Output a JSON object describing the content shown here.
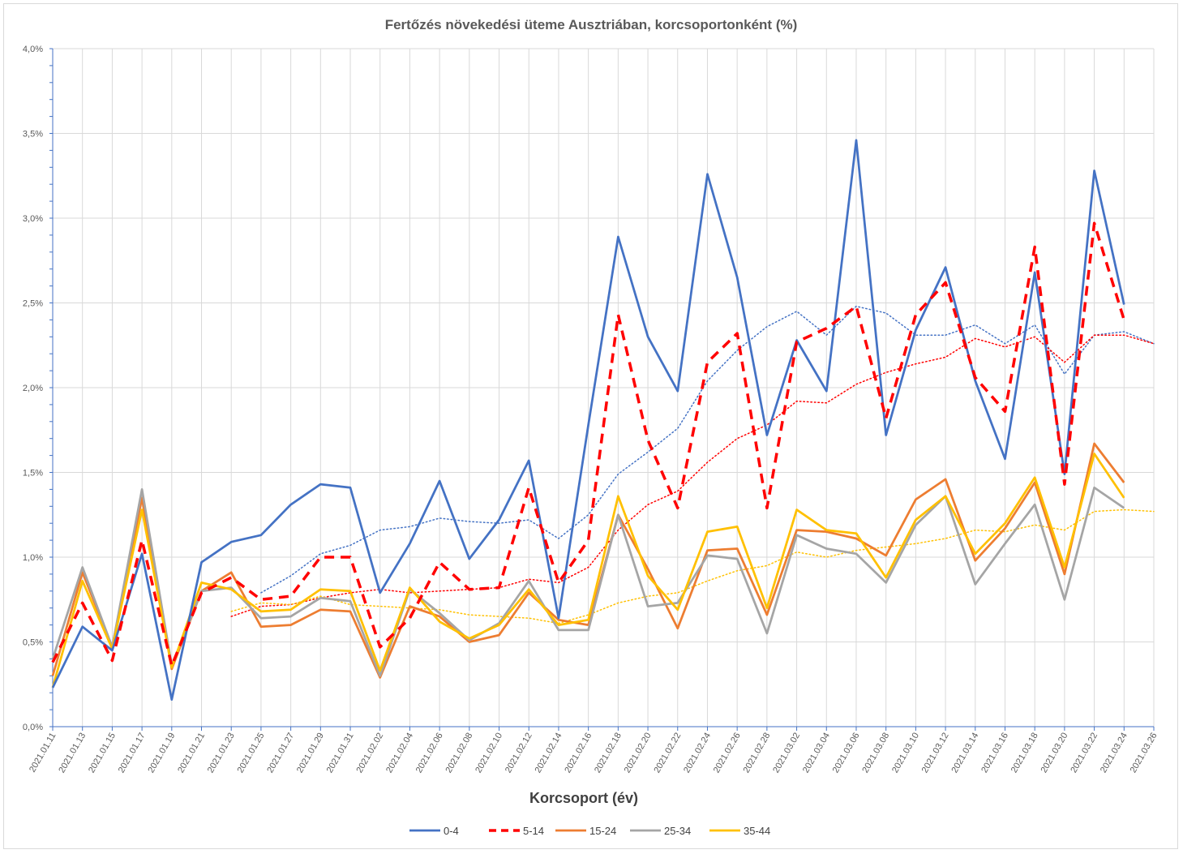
{
  "chart_data": {
    "type": "line",
    "title": "Fertőzés növekedési üteme Ausztriában, korcsoportonként (%)",
    "xlabel": "Korcsoport (év)",
    "ylabel": "",
    "ylim": [
      0,
      0.04
    ],
    "y_ticks": [
      "0,0%",
      "0,5%",
      "1,0%",
      "1,5%",
      "2,0%",
      "2,5%",
      "3,0%",
      "3,5%",
      "4,0%"
    ],
    "x_tick_labels": [
      "2021.01.11",
      "2021.01.13",
      "2021.01.15",
      "2021.01.17",
      "2021.01.19",
      "2021.01.21",
      "2021.01.23",
      "2021.01.25",
      "2021.01.27",
      "2021.01.29",
      "2021.01.31",
      "2021.02.02",
      "2021.02.04",
      "2021.02.06",
      "2021.02.08",
      "2021.02.10",
      "2021.02.12",
      "2021.02.14",
      "2021.02.16",
      "2021.02.18",
      "2021.02.20",
      "2021.02.22",
      "2021.02.24",
      "2021.02.26",
      "2021.02.28",
      "2021.03.02",
      "2021.03.04",
      "2021.03.06",
      "2021.03.08",
      "2021.03.10",
      "2021.03.12",
      "2021.03.14",
      "2021.03.16",
      "2021.03.18",
      "2021.03.20",
      "2021.03.22",
      "2021.03.24",
      "2021.03.26"
    ],
    "grid": "vertical and horizontal",
    "legend_position": "bottom",
    "series": [
      {
        "name": "0-4",
        "color": "#4472c4",
        "dash": "solid",
        "values": [
          0.0023,
          0.0059,
          0.0045,
          0.0102,
          0.0016,
          0.0097,
          0.0109,
          0.0113,
          0.0131,
          0.0143,
          0.0141,
          0.0079,
          0.0108,
          0.0145,
          0.0099,
          0.0122,
          0.0157,
          0.0064,
          0.0178,
          0.0289,
          0.023,
          0.0198,
          0.0326,
          0.0265,
          0.0172,
          0.0228,
          0.0198,
          0.0346,
          0.0172,
          0.0234,
          0.0271,
          0.0204,
          0.0158,
          0.0268,
          0.0149,
          0.0328,
          0.0249,
          null
        ]
      },
      {
        "name": "5-14",
        "color": "#ff0000",
        "dash": "dashed",
        "values": [
          0.0038,
          0.0073,
          0.0039,
          0.011,
          0.0036,
          0.0079,
          0.0088,
          0.0075,
          0.0077,
          0.01,
          0.01,
          0.0047,
          0.0064,
          0.0097,
          0.0081,
          0.0082,
          0.0141,
          0.0085,
          0.011,
          0.0243,
          0.0169,
          0.0129,
          0.0215,
          0.0232,
          0.0129,
          0.0227,
          0.0235,
          0.0248,
          0.0182,
          0.0243,
          0.0262,
          0.0206,
          0.0186,
          0.0283,
          0.0143,
          0.0297,
          0.024,
          null
        ]
      },
      {
        "name": "15-24",
        "color": "#ed7d31",
        "dash": "solid",
        "values": [
          0.003,
          0.0091,
          0.0047,
          0.0135,
          0.0034,
          0.008,
          0.0091,
          0.0059,
          0.006,
          0.0069,
          0.0068,
          0.0029,
          0.0071,
          0.0065,
          0.005,
          0.0054,
          0.0079,
          0.0063,
          0.006,
          0.0125,
          0.0093,
          0.0058,
          0.0104,
          0.0105,
          0.0066,
          0.0116,
          0.0115,
          0.0111,
          0.0101,
          0.0134,
          0.0146,
          0.0098,
          0.0117,
          0.0144,
          0.009,
          0.0167,
          0.0144,
          null
        ]
      },
      {
        "name": "25-34",
        "color": "#a5a5a5",
        "dash": "solid",
        "values": [
          0.004,
          0.0094,
          0.0047,
          0.014,
          0.0036,
          0.008,
          0.0082,
          0.0064,
          0.0065,
          0.0076,
          0.0074,
          0.003,
          0.0081,
          0.0067,
          0.0051,
          0.0061,
          0.0086,
          0.0057,
          0.0057,
          0.0125,
          0.0071,
          0.0073,
          0.0101,
          0.0099,
          0.0055,
          0.0113,
          0.0105,
          0.0102,
          0.0085,
          0.0119,
          0.0136,
          0.0084,
          0.0108,
          0.0131,
          0.0075,
          0.0141,
          0.0129,
          null
        ]
      },
      {
        "name": "35-44",
        "color": "#ffc000",
        "dash": "solid",
        "values": [
          0.0023,
          0.0086,
          0.0046,
          0.0128,
          0.0035,
          0.0085,
          0.0081,
          0.0068,
          0.0069,
          0.0081,
          0.008,
          0.0033,
          0.0082,
          0.0062,
          0.0052,
          0.006,
          0.0081,
          0.006,
          0.0063,
          0.0136,
          0.0089,
          0.0069,
          0.0115,
          0.0118,
          0.007,
          0.0128,
          0.0116,
          0.0114,
          0.0088,
          0.0122,
          0.0136,
          0.0102,
          0.012,
          0.0147,
          0.0094,
          0.0161,
          0.0135,
          null
        ]
      }
    ],
    "trendlines": [
      {
        "of": "0-4",
        "color": "#4472c4",
        "dash": "dotted",
        "values": [
          null,
          null,
          null,
          null,
          null,
          null,
          null,
          0.0079,
          0.0089,
          0.0102,
          0.0107,
          0.0116,
          0.0118,
          0.0123,
          0.0121,
          0.012,
          0.0122,
          0.0111,
          0.0125,
          0.0149,
          0.0162,
          0.0176,
          0.0204,
          0.0222,
          0.0236,
          0.0245,
          0.0231,
          0.0248,
          0.0244,
          0.0231,
          0.0231,
          0.0237,
          0.0226,
          0.0237,
          0.0208,
          0.0231,
          0.0233,
          0.0226
        ]
      },
      {
        "of": "5-14",
        "color": "#ff0000",
        "dash": "dotted",
        "values": [
          null,
          null,
          null,
          null,
          null,
          null,
          0.0065,
          0.0071,
          0.0072,
          0.0076,
          0.0079,
          0.0081,
          0.0079,
          0.008,
          0.0081,
          0.0082,
          0.0087,
          0.0085,
          0.0094,
          0.0116,
          0.0131,
          0.0139,
          0.0156,
          0.017,
          0.0178,
          0.0192,
          0.0191,
          0.0202,
          0.0209,
          0.0214,
          0.0218,
          0.0229,
          0.0224,
          0.023,
          0.0215,
          0.0231,
          0.0231,
          0.0226
        ]
      },
      {
        "of": "35-44",
        "color": "#ffc000",
        "dash": "dotted",
        "values": [
          null,
          null,
          null,
          null,
          null,
          null,
          0.0068,
          0.0073,
          0.0072,
          0.0077,
          0.0072,
          0.0071,
          0.007,
          0.0069,
          0.0066,
          0.0065,
          0.0064,
          0.0061,
          0.0066,
          0.0073,
          0.0077,
          0.0079,
          0.0086,
          0.0092,
          0.0095,
          0.0103,
          0.01,
          0.0104,
          0.0106,
          0.0108,
          0.0111,
          0.0116,
          0.0115,
          0.0119,
          0.0116,
          0.0127,
          0.0128,
          0.0127
        ]
      }
    ]
  }
}
